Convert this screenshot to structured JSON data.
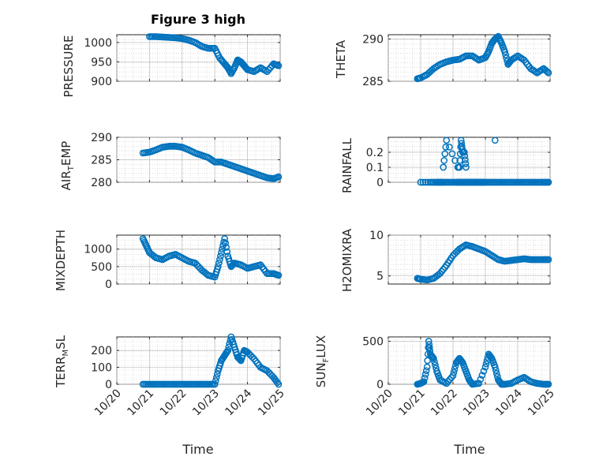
{
  "figure": {
    "title": "Figure 3 high",
    "marker_color": "#0072BD"
  },
  "chart_data": [
    {
      "type": "scatter",
      "name": "pressure",
      "ylabel": "PRESSURE",
      "ylim": [
        900,
        1020
      ],
      "yticks": [
        900,
        950,
        1000
      ],
      "x": [
        21.0,
        21.2,
        21.4,
        21.6,
        21.8,
        22.0,
        22.2,
        22.4,
        22.6,
        22.8,
        23.0,
        23.15,
        23.3,
        23.4,
        23.5,
        23.6,
        23.7,
        23.8,
        23.9,
        24.0,
        24.2,
        24.4,
        24.6,
        24.8,
        24.95
      ],
      "y": [
        1015,
        1015,
        1014,
        1013,
        1012,
        1010,
        1006,
        1000,
        990,
        985,
        985,
        960,
        945,
        935,
        920,
        935,
        955,
        950,
        940,
        930,
        925,
        935,
        925,
        945,
        940
      ]
    },
    {
      "type": "scatter",
      "name": "theta",
      "ylabel": "THETA",
      "ylim": [
        285,
        290.5
      ],
      "yticks": [
        285,
        290
      ],
      "x": [
        20.9,
        21.0,
        21.2,
        21.4,
        21.6,
        21.8,
        22.0,
        22.2,
        22.4,
        22.6,
        22.8,
        23.0,
        23.1,
        23.2,
        23.3,
        23.4,
        23.5,
        23.6,
        23.7,
        23.8,
        24.0,
        24.2,
        24.4,
        24.6,
        24.8,
        24.95
      ],
      "y": [
        285.3,
        285.4,
        285.8,
        286.5,
        287.0,
        287.3,
        287.5,
        287.6,
        288.0,
        288.0,
        287.5,
        287.8,
        288.5,
        289.5,
        290.0,
        290.3,
        289.5,
        288.5,
        287.0,
        287.5,
        288.0,
        287.5,
        286.5,
        286.0,
        286.5,
        286.0
      ]
    },
    {
      "type": "scatter",
      "name": "air_temp",
      "ylabel": "AIR_TEMP",
      "ylim": [
        280,
        290
      ],
      "yticks": [
        280,
        285,
        290
      ],
      "x": [
        20.8,
        21.0,
        21.2,
        21.4,
        21.6,
        21.8,
        22.0,
        22.2,
        22.4,
        22.6,
        22.8,
        23.0,
        23.2,
        23.4,
        23.6,
        23.8,
        24.0,
        24.2,
        24.4,
        24.6,
        24.8,
        24.95
      ],
      "y": [
        286.5,
        286.7,
        287.2,
        287.8,
        288.0,
        288.0,
        287.8,
        287.2,
        286.5,
        286.0,
        285.5,
        284.5,
        284.5,
        284.0,
        283.5,
        283.0,
        282.5,
        282.0,
        281.5,
        281.0,
        280.8,
        281.2
      ]
    },
    {
      "type": "scatter",
      "name": "rainfall",
      "ylabel": "RAINFALL",
      "ylim": [
        0,
        0.3
      ],
      "yticks": [
        0,
        0.1,
        0.2
      ],
      "x": [
        21.0,
        21.3,
        21.5,
        21.6,
        21.7,
        21.9,
        22.1,
        22.2,
        22.3,
        22.4,
        22.5,
        22.6,
        22.7,
        22.8,
        22.9,
        23.0,
        23.2,
        23.4,
        23.6,
        23.8,
        24.0,
        24.2,
        24.4,
        24.6,
        24.8,
        24.95,
        21.7,
        21.8,
        22.15,
        22.2,
        22.25,
        22.3,
        22.35,
        22.4,
        23.3
      ],
      "y": [
        0,
        0,
        0,
        0,
        0,
        0,
        0,
        0,
        0,
        0,
        0,
        0,
        0,
        0,
        0,
        0,
        0,
        0,
        0,
        0,
        0,
        0,
        0,
        0,
        0,
        0,
        0.1,
        0.28,
        0.1,
        0.1,
        0.28,
        0.2,
        0.2,
        0.1,
        0.28
      ]
    },
    {
      "type": "scatter",
      "name": "mixdepth",
      "ylabel": "MIXDEPTH",
      "ylim": [
        0,
        1400
      ],
      "yticks": [
        0,
        500,
        1000
      ],
      "x": [
        20.8,
        20.9,
        21.0,
        21.2,
        21.4,
        21.6,
        21.8,
        22.0,
        22.2,
        22.4,
        22.6,
        22.8,
        23.0,
        23.1,
        23.2,
        23.3,
        23.4,
        23.5,
        23.6,
        23.8,
        24.0,
        24.2,
        24.4,
        24.6,
        24.8,
        24.95
      ],
      "y": [
        1300,
        1100,
        900,
        750,
        700,
        800,
        850,
        750,
        650,
        600,
        400,
        250,
        200,
        500,
        900,
        1300,
        800,
        500,
        600,
        550,
        450,
        500,
        550,
        300,
        300,
        250
      ]
    },
    {
      "type": "scatter",
      "name": "h2omixra",
      "ylabel": "H2OMIXRA",
      "ylim": [
        4,
        10
      ],
      "yticks": [
        5,
        10
      ],
      "x": [
        20.9,
        21.0,
        21.2,
        21.4,
        21.6,
        21.8,
        22.0,
        22.2,
        22.4,
        22.6,
        22.8,
        23.0,
        23.2,
        23.4,
        23.6,
        23.8,
        24.0,
        24.2,
        24.4,
        24.6,
        24.8,
        24.95
      ],
      "y": [
        4.7,
        4.6,
        4.5,
        4.7,
        5.3,
        6.3,
        7.5,
        8.3,
        8.8,
        8.6,
        8.3,
        8.0,
        7.5,
        7.0,
        6.8,
        6.9,
        7.0,
        7.1,
        7.0,
        7.0,
        7.0,
        7.0
      ]
    },
    {
      "type": "scatter",
      "name": "terr_msl",
      "ylabel": "TERR_MSL",
      "ylim": [
        0,
        280
      ],
      "yticks": [
        0,
        100,
        200
      ],
      "x": [
        20.8,
        21.0,
        21.2,
        21.4,
        21.6,
        21.8,
        22.0,
        22.2,
        22.4,
        22.6,
        22.8,
        23.0,
        23.1,
        23.2,
        23.3,
        23.4,
        23.5,
        23.6,
        23.7,
        23.8,
        23.9,
        24.0,
        24.2,
        24.4,
        24.6,
        24.8,
        24.95
      ],
      "y": [
        0,
        0,
        0,
        0,
        0,
        0,
        0,
        0,
        0,
        0,
        0,
        0,
        80,
        140,
        170,
        200,
        280,
        220,
        160,
        140,
        200,
        190,
        150,
        100,
        80,
        40,
        0
      ]
    },
    {
      "type": "scatter",
      "name": "sun_flux",
      "ylabel": "SUN_FLUX",
      "ylim": [
        0,
        550
      ],
      "yticks": [
        0,
        500
      ],
      "x": [
        20.9,
        21.0,
        21.1,
        21.2,
        21.25,
        21.3,
        21.4,
        21.5,
        21.6,
        21.8,
        22.0,
        22.1,
        22.2,
        22.3,
        22.4,
        22.5,
        22.6,
        22.8,
        23.0,
        23.1,
        23.2,
        23.3,
        23.4,
        23.5,
        23.6,
        23.8,
        24.0,
        24.2,
        24.4,
        24.6,
        24.8,
        24.95
      ],
      "y": [
        0,
        10,
        30,
        200,
        500,
        350,
        300,
        150,
        50,
        10,
        100,
        250,
        300,
        250,
        150,
        50,
        0,
        10,
        200,
        350,
        300,
        200,
        50,
        0,
        0,
        10,
        50,
        80,
        30,
        10,
        0,
        0
      ]
    }
  ],
  "xaxis": {
    "xlim": [
      20,
      25
    ],
    "ticks": [
      20,
      21,
      22,
      23,
      24,
      25
    ],
    "ticklabels": [
      "10/20",
      "10/21",
      "10/22",
      "10/23",
      "10/24",
      "10/25"
    ],
    "label": "Time"
  }
}
